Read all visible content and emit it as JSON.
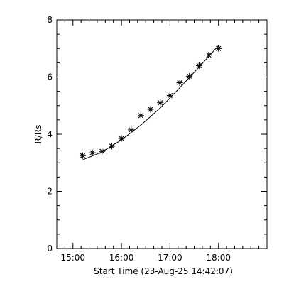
{
  "chart_data": {
    "type": "scatter",
    "xlabel": "Start Time (23-Aug-25 14:42:07)",
    "ylabel": "R/Rs",
    "x_ticks": [
      {
        "value": "15:00",
        "minutes": 900
      },
      {
        "value": "16:00",
        "minutes": 960
      },
      {
        "value": "17:00",
        "minutes": 1020
      },
      {
        "value": "18:00",
        "minutes": 1080
      }
    ],
    "y_ticks": [
      0,
      2,
      4,
      6,
      8
    ],
    "xlim": [
      "14:40",
      "19:00"
    ],
    "ylim": [
      0,
      8
    ],
    "marker": "asterisk",
    "series": [
      {
        "points": [
          {
            "time": "15:12",
            "y": 3.25
          },
          {
            "time": "15:24",
            "y": 3.35
          },
          {
            "time": "15:36",
            "y": 3.4
          },
          {
            "time": "15:48",
            "y": 3.58
          },
          {
            "time": "16:00",
            "y": 3.85
          },
          {
            "time": "16:12",
            "y": 4.15
          },
          {
            "time": "16:24",
            "y": 4.65
          },
          {
            "time": "16:36",
            "y": 4.87
          },
          {
            "time": "16:48",
            "y": 5.1
          },
          {
            "time": "17:00",
            "y": 5.35
          },
          {
            "time": "17:12",
            "y": 5.8
          },
          {
            "time": "17:24",
            "y": 6.03
          },
          {
            "time": "17:36",
            "y": 6.4
          },
          {
            "time": "17:48",
            "y": 6.77
          },
          {
            "time": "18:00",
            "y": 7.0
          }
        ]
      }
    ],
    "fit": {
      "type": "quadratic",
      "points": [
        {
          "time": "15:12",
          "y": 3.1
        },
        {
          "time": "15:36",
          "y": 3.38
        },
        {
          "time": "16:00",
          "y": 3.8
        },
        {
          "time": "16:24",
          "y": 4.32
        },
        {
          "time": "16:48",
          "y": 4.92
        },
        {
          "time": "17:12",
          "y": 5.62
        },
        {
          "time": "17:36",
          "y": 6.35
        },
        {
          "time": "18:00",
          "y": 7.1
        }
      ]
    },
    "grid": false,
    "colors": {
      "line": "#000000",
      "background": "#ffffff"
    }
  }
}
